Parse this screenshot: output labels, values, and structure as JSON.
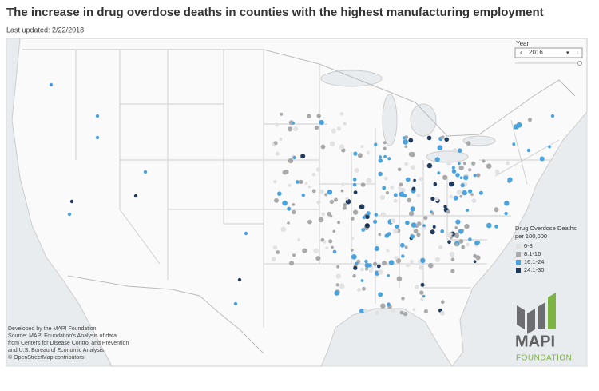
{
  "header": {
    "title": "The increase in drug overdose deaths in counties with the highest manufacturing employment",
    "last_updated": "Last updated: 2/22/2018"
  },
  "year_filter": {
    "label": "Year",
    "value": "2016"
  },
  "legend": {
    "title_lines": [
      "Drug Overdose Deaths",
      "per 100,000"
    ],
    "items": [
      {
        "label": "0-8",
        "color": "#e2e2e2"
      },
      {
        "label": "8.1-16",
        "color": "#a9a9a9"
      },
      {
        "label": "16.1-24",
        "color": "#4aa3df"
      },
      {
        "label": "24.1-30",
        "color": "#1f3a5c"
      }
    ]
  },
  "credits": [
    "Developed by the MAPI Foundation",
    "Source: MAPI Foundation's Analysis of data",
    "from Centers for Disease Control and Prevention",
    "and U.S. Bureau of Economic Analysis",
    "© OpenStreetMap contributors"
  ],
  "logo": {
    "name": "MAPI",
    "subtitle": "FOUNDATION"
  }
}
